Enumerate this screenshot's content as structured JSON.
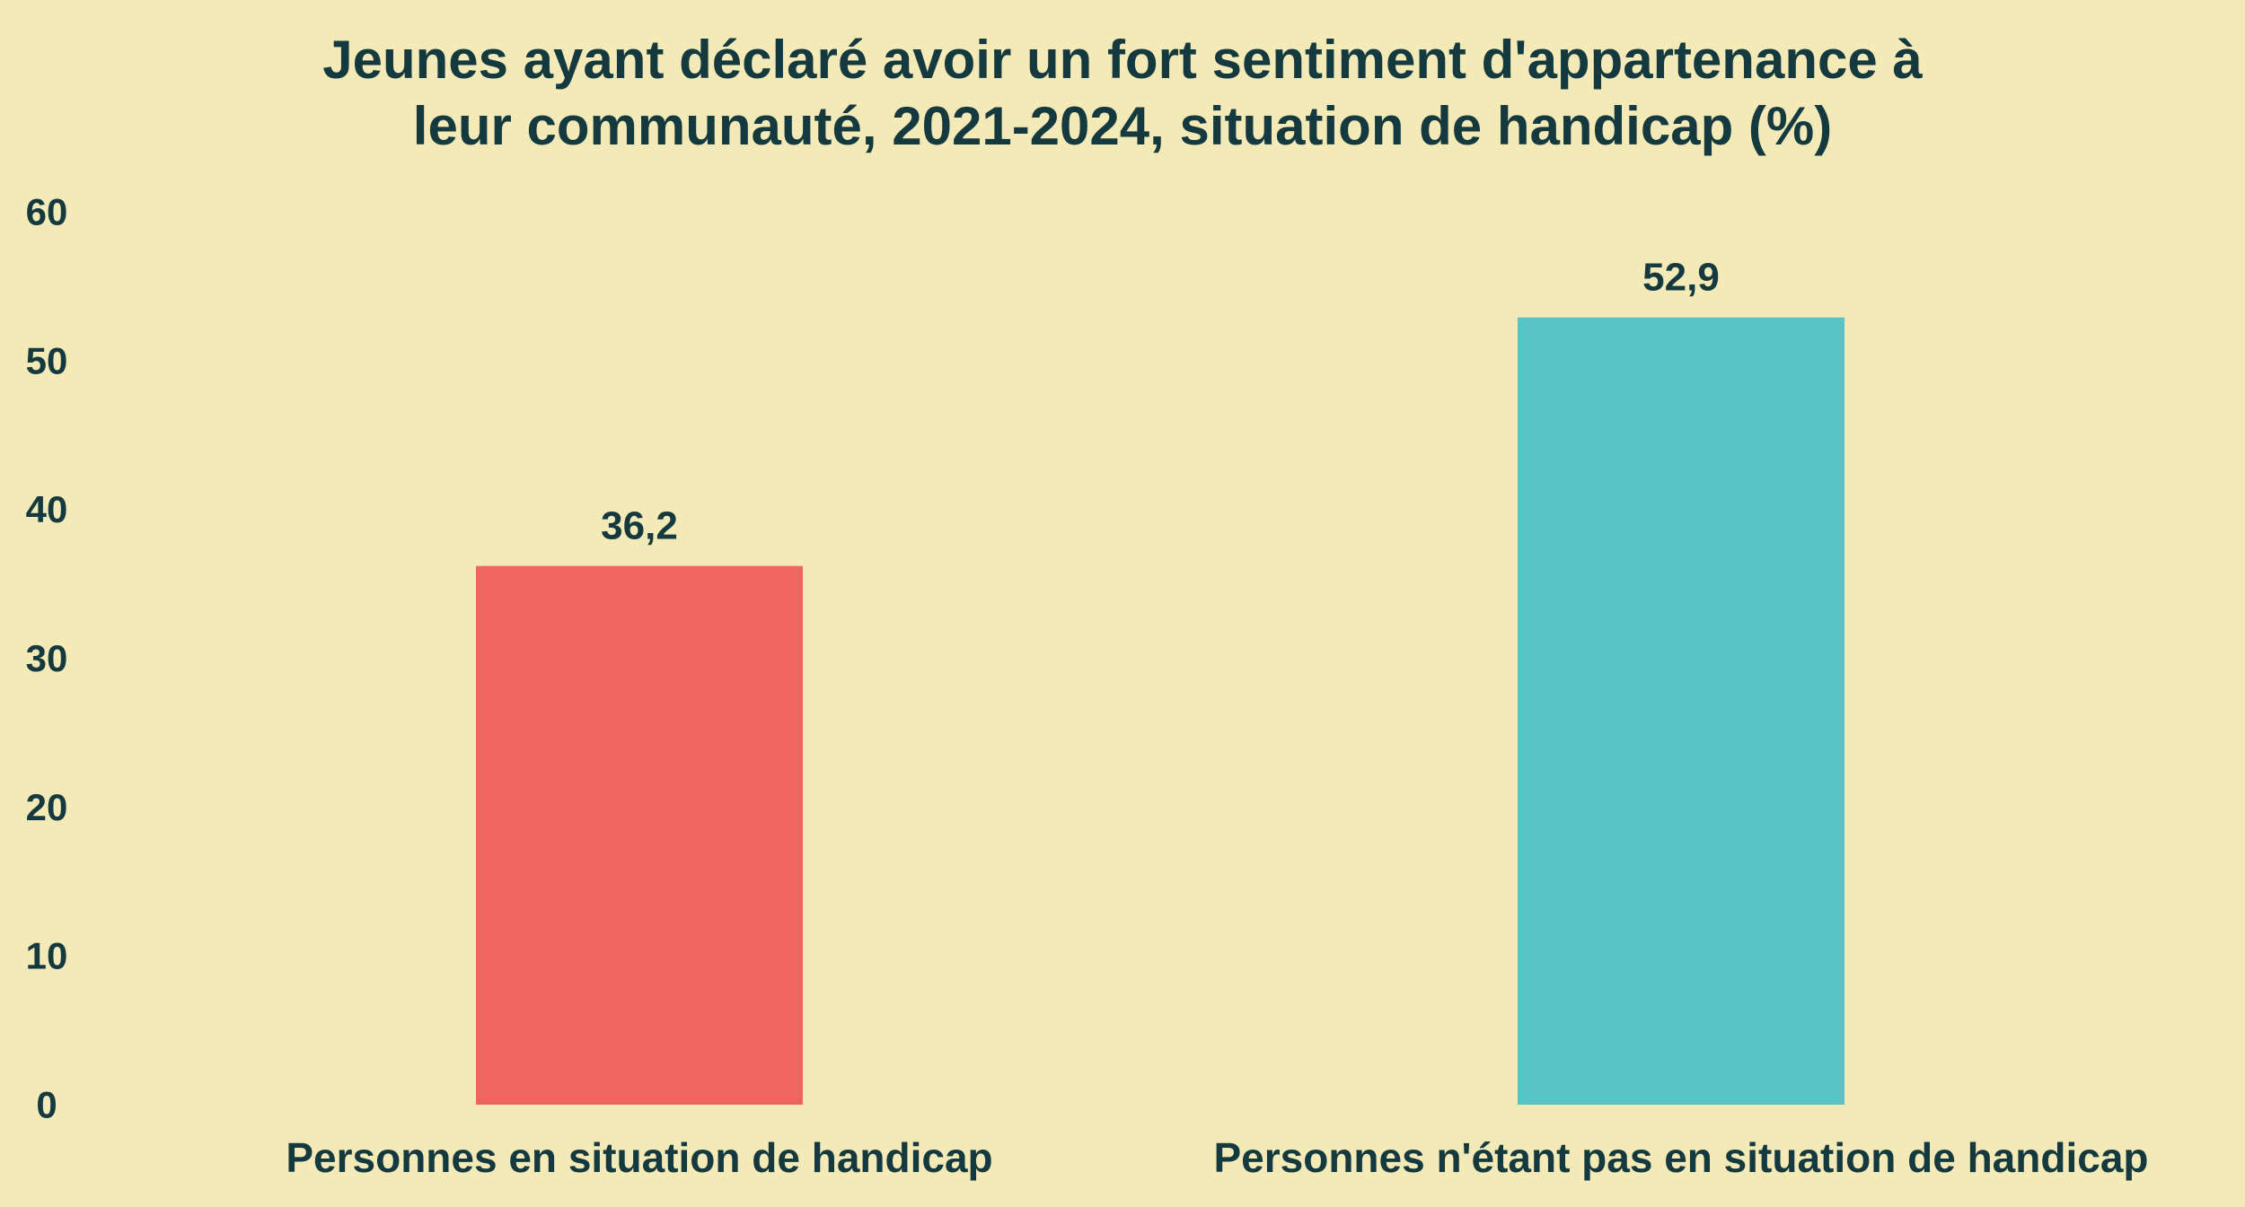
{
  "chart_data": {
    "type": "bar",
    "title": "Jeunes ayant déclaré avoir un fort sentiment d'appartenance à\nleur communauté, 2021-2024, situation de handicap (%)",
    "categories": [
      "Personnes en situation de handicap",
      "Personnes n'étant pas en situation de handicap"
    ],
    "values": [
      36.2,
      52.9
    ],
    "data_labels": [
      "36,2",
      "52,9"
    ],
    "colors": [
      "#f0665f",
      "#56c4c6"
    ],
    "ylim": [
      0,
      60
    ],
    "yticks": [
      0,
      10,
      20,
      30,
      40,
      50,
      60
    ],
    "xlabel": "",
    "ylabel": "",
    "grid": false,
    "legend": "none"
  },
  "colors": {
    "background": "#f4eab7",
    "text": "#143a40"
  }
}
